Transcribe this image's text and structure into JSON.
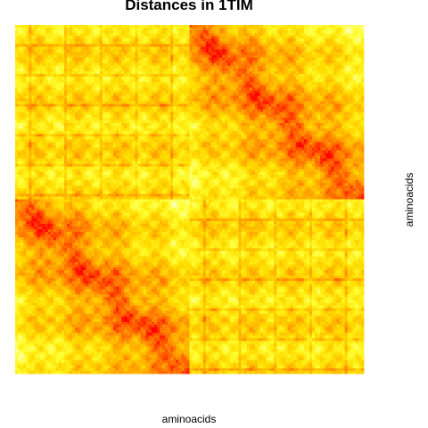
{
  "chart_data": {
    "type": "heatmap",
    "title": "Distances in 1TIM",
    "xlabel": "aminoacids",
    "ylabel": "aminoacids",
    "grid": false,
    "legend": "none",
    "axes_ticks": false,
    "colormap": [
      "#ff0000",
      "#ff6600",
      "#ffaa00",
      "#ffdd00",
      "#ffff33",
      "#ffffcc"
    ],
    "blocks": [
      {
        "name": "top-left",
        "row": 0,
        "col": 0,
        "diagonal": false
      },
      {
        "name": "top-right",
        "row": 0,
        "col": 1,
        "diagonal": true
      },
      {
        "name": "bottom-left",
        "row": 1,
        "col": 0,
        "diagonal": true
      },
      {
        "name": "bottom-right",
        "row": 1,
        "col": 1,
        "diagonal": false
      }
    ]
  }
}
